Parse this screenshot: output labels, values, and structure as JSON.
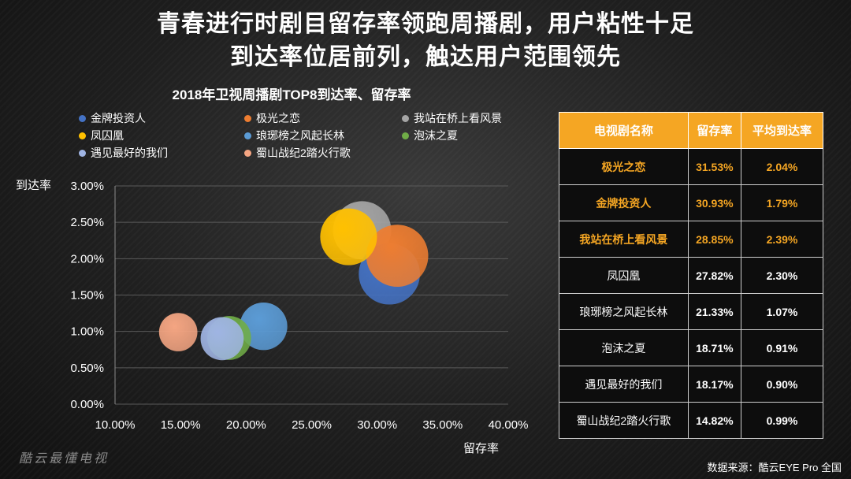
{
  "headline": {
    "line1": "青春进行时剧目留存率领跑周播剧，用户粘性十足",
    "line2": "到达率位居前列，触达用户范围领先"
  },
  "chart_data": {
    "type": "scatter",
    "title": "2018年卫视周播剧TOP8到达率、留存率",
    "xlabel": "留存率",
    "ylabel": "到达率",
    "xlim": [
      0.1,
      0.4
    ],
    "ylim": [
      0.0,
      0.03
    ],
    "x_ticks": [
      "10.00%",
      "15.00%",
      "20.00%",
      "25.00%",
      "30.00%",
      "35.00%",
      "40.00%"
    ],
    "y_ticks": [
      "0.00%",
      "0.50%",
      "1.00%",
      "1.50%",
      "2.00%",
      "2.50%",
      "3.00%"
    ],
    "grid": true,
    "legend_position": "top",
    "series": [
      {
        "name": "金牌投资人",
        "x": 0.3093,
        "y": 0.0179,
        "color": "#4472c4"
      },
      {
        "name": "极光之恋",
        "x": 0.3153,
        "y": 0.0204,
        "color": "#ed7d31"
      },
      {
        "name": "我站在桥上看风景",
        "x": 0.2885,
        "y": 0.0239,
        "color": "#a5a5a5"
      },
      {
        "name": "凤囚凰",
        "x": 0.2782,
        "y": 0.023,
        "color": "#ffc000"
      },
      {
        "name": "琅琊榜之风起长林",
        "x": 0.2133,
        "y": 0.0107,
        "color": "#5b9bd5"
      },
      {
        "name": "泡沫之夏",
        "x": 0.1871,
        "y": 0.0091,
        "color": "#70ad47"
      },
      {
        "name": "遇见最好的我们",
        "x": 0.1817,
        "y": 0.009,
        "color": "#9fb4e3"
      },
      {
        "name": "蜀山战纪2踏火行歌",
        "x": 0.1482,
        "y": 0.0099,
        "color": "#f4a582"
      }
    ]
  },
  "table": {
    "headers": [
      "电视剧名称",
      "留存率",
      "平均到达率"
    ],
    "rows": [
      [
        "极光之恋",
        "31.53%",
        "2.04%"
      ],
      [
        "金牌投资人",
        "30.93%",
        "1.79%"
      ],
      [
        "我站在桥上看风景",
        "28.85%",
        "2.39%"
      ],
      [
        "凤囚凰",
        "27.82%",
        "2.30%"
      ],
      [
        "琅琊榜之风起长林",
        "21.33%",
        "1.07%"
      ],
      [
        "泡沫之夏",
        "18.71%",
        "0.91%"
      ],
      [
        "遇见最好的我们",
        "18.17%",
        "0.90%"
      ],
      [
        "蜀山战纪2踏火行歌",
        "14.82%",
        "0.99%"
      ]
    ],
    "highlight_rows": 3,
    "highlight_color": "#f5a623"
  },
  "footer": {
    "watermark": "酷云最懂电视",
    "source": "数据来源：酷云EYE Pro 全国"
  }
}
